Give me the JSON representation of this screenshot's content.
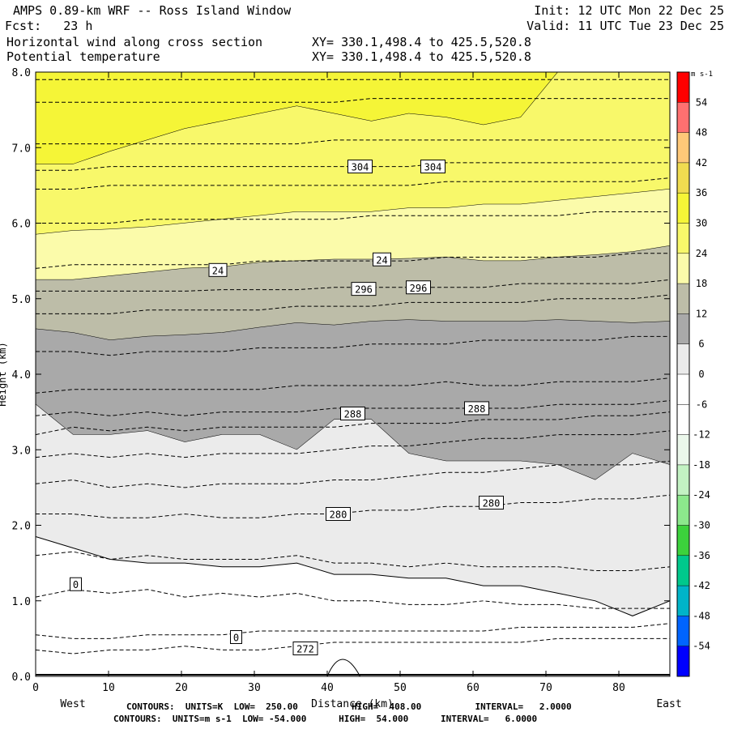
{
  "header": {
    "title": "AMPS 0.89-km WRF -- Ross Island Window",
    "init": "Init: 12 UTC Mon 22 Dec 25",
    "fcst": "Fcst:   23 h",
    "valid": "Valid: 11 UTC Tue 23 Dec 25",
    "field1": "Horizontal wind along cross section",
    "field1_xy": "XY= 330.1,498.4 to 425.5,520.8",
    "field2": "Potential temperature",
    "field2_xy": "XY= 330.1,498.4 to 425.5,520.8"
  },
  "footer": {
    "line1": "CONTOURS:  UNITS=K  LOW=  250.00          HIGH=  408.00          INTERVAL=   2.0000",
    "line2": "CONTOURS:  UNITS=m s-1  LOW= -54.000      HIGH=  54.000      INTERVAL=   6.0000"
  },
  "chart_data": {
    "type": "heatmap",
    "title": "AMPS 0.89-km WRF -- Ross Island Window",
    "xlabel": "Distance (km)",
    "ylabel": "Height (km)",
    "x_end_labels": [
      "West",
      "East"
    ],
    "xlim": [
      0,
      87
    ],
    "ylim": [
      0,
      8
    ],
    "xticks": [
      0,
      10,
      20,
      30,
      40,
      50,
      60,
      70,
      80
    ],
    "xtick_labels": [
      "0",
      "10",
      "20",
      "30",
      "40",
      "50",
      "60",
      "70",
      "80"
    ],
    "yticks": [
      0,
      1,
      2,
      3,
      4,
      5,
      6,
      7,
      8
    ],
    "ytick_labels": [
      "0.0",
      "1.0",
      "2.0",
      "3.0",
      "4.0",
      "5.0",
      "6.0",
      "7.0",
      "8.0"
    ],
    "colorbar": {
      "units": "m s-1",
      "labels": [
        "54",
        "48",
        "42",
        "36",
        "30",
        "24",
        "18",
        "12",
        "6",
        "0",
        "-6",
        "-12",
        "-18",
        "-24",
        "-30",
        "-36",
        "-42",
        "-48",
        "-54"
      ],
      "colors": [
        "#ff0000",
        "#ff7070",
        "#ffc878",
        "#f0dc50",
        "#f5f537",
        "#f8f86a",
        "#fbfbaa",
        "#bdbda8",
        "#a9a9a9",
        "#ebebeb",
        "#ffffff",
        "#ffffff",
        "#ebf7eb",
        "#c3f2c3",
        "#8ce88c",
        "#3cd23c",
        "#00c88c",
        "#00b4c8",
        "#0064ff",
        "#0000ff"
      ]
    },
    "wind_bands": [
      {
        "range": "30 to 36",
        "color": "#f5f537",
        "top": [
          8.0,
          8.0,
          8.0,
          8.0,
          8.0,
          8.0,
          8.0,
          8.0,
          8.0,
          8.0,
          8.0,
          8.0,
          8.0,
          8.0,
          8.0,
          8.0,
          8.0,
          8.0
        ],
        "bottom": [
          6.78,
          6.78,
          6.95,
          7.1,
          7.25,
          7.35,
          7.45,
          7.55,
          7.45,
          7.35,
          7.45,
          7.4,
          7.3,
          7.4,
          8.0,
          8.0,
          8.0,
          8.0
        ]
      },
      {
        "range": "24 to 30",
        "color": "#f8f86a",
        "top": [
          6.78,
          6.78,
          6.95,
          7.1,
          7.25,
          7.35,
          7.45,
          7.55,
          7.45,
          7.35,
          7.45,
          7.4,
          7.3,
          7.4,
          8.0,
          8.0,
          8.0,
          8.0
        ],
        "bottom": [
          5.85,
          5.9,
          5.92,
          5.95,
          6.0,
          6.05,
          6.1,
          6.15,
          6.15,
          6.15,
          6.2,
          6.2,
          6.25,
          6.25,
          6.3,
          6.35,
          6.4,
          6.45
        ]
      },
      {
        "range": "18 to 24",
        "color": "#fbfbaa",
        "top": [
          5.85,
          5.9,
          5.92,
          5.95,
          6.0,
          6.05,
          6.1,
          6.15,
          6.15,
          6.15,
          6.2,
          6.2,
          6.25,
          6.25,
          6.3,
          6.35,
          6.4,
          6.45
        ],
        "bottom": [
          5.25,
          5.25,
          5.3,
          5.35,
          5.4,
          5.42,
          5.48,
          5.5,
          5.52,
          5.52,
          5.53,
          5.55,
          5.5,
          5.5,
          5.55,
          5.58,
          5.62,
          5.7
        ]
      },
      {
        "range": "12 to 18",
        "color": "#bdbda8",
        "top": [
          5.25,
          5.25,
          5.3,
          5.35,
          5.4,
          5.42,
          5.48,
          5.5,
          5.52,
          5.52,
          5.53,
          5.55,
          5.5,
          5.5,
          5.55,
          5.58,
          5.62,
          5.7
        ],
        "bottom": [
          4.6,
          4.55,
          4.45,
          4.5,
          4.52,
          4.55,
          4.62,
          4.68,
          4.65,
          4.7,
          4.72,
          4.7,
          4.7,
          4.7,
          4.72,
          4.7,
          4.68,
          4.7
        ]
      },
      {
        "range": "6 to 12",
        "color": "#a9a9a9",
        "top": [
          4.6,
          4.55,
          4.45,
          4.5,
          4.52,
          4.55,
          4.62,
          4.68,
          4.65,
          4.7,
          4.72,
          4.7,
          4.7,
          4.7,
          4.72,
          4.7,
          4.68,
          4.7
        ],
        "bottom": [
          3.6,
          3.2,
          3.2,
          3.25,
          3.1,
          3.2,
          3.2,
          3.0,
          3.4,
          3.4,
          2.95,
          2.85,
          2.85,
          2.85,
          2.8,
          2.6,
          2.95,
          2.8
        ]
      },
      {
        "range": "0 to 6",
        "color": "#ebebeb",
        "top": [
          3.6,
          3.2,
          3.2,
          3.25,
          3.1,
          3.2,
          3.2,
          3.0,
          3.4,
          3.4,
          2.95,
          2.85,
          2.85,
          2.85,
          2.8,
          2.6,
          2.95,
          2.8
        ],
        "bottom": [
          1.85,
          1.7,
          1.55,
          1.5,
          1.5,
          1.45,
          1.45,
          1.5,
          1.35,
          1.35,
          1.3,
          1.3,
          1.2,
          1.2,
          1.1,
          1.0,
          0.8,
          1.0
        ]
      }
    ],
    "theta_contours": [
      {
        "theta": 272,
        "z": [
          0.35,
          0.3,
          0.35,
          0.35,
          0.4,
          0.35,
          0.35,
          0.4,
          0.45,
          0.45,
          0.45,
          0.45,
          0.45,
          0.45,
          0.5,
          0.5,
          0.5,
          0.5
        ]
      },
      {
        "theta": 274,
        "z": [
          0.55,
          0.5,
          0.5,
          0.55,
          0.55,
          0.55,
          0.6,
          0.6,
          0.6,
          0.6,
          0.6,
          0.6,
          0.6,
          0.65,
          0.65,
          0.65,
          0.65,
          0.7
        ]
      },
      {
        "theta": 276,
        "z": [
          1.05,
          1.15,
          1.1,
          1.15,
          1.05,
          1.1,
          1.05,
          1.1,
          1.0,
          1.0,
          0.95,
          0.95,
          1.0,
          0.95,
          0.95,
          0.9,
          0.9,
          0.9
        ]
      },
      {
        "theta": 278,
        "z": [
          1.6,
          1.65,
          1.55,
          1.6,
          1.55,
          1.55,
          1.55,
          1.6,
          1.5,
          1.5,
          1.45,
          1.5,
          1.45,
          1.45,
          1.45,
          1.4,
          1.4,
          1.45
        ]
      },
      {
        "theta": 280,
        "z": [
          2.15,
          2.15,
          2.1,
          2.1,
          2.15,
          2.1,
          2.1,
          2.15,
          2.15,
          2.2,
          2.2,
          2.25,
          2.25,
          2.3,
          2.3,
          2.35,
          2.35,
          2.4
        ]
      },
      {
        "theta": 282,
        "z": [
          2.55,
          2.6,
          2.5,
          2.55,
          2.5,
          2.55,
          2.55,
          2.55,
          2.6,
          2.6,
          2.65,
          2.7,
          2.7,
          2.75,
          2.8,
          2.8,
          2.8,
          2.85
        ]
      },
      {
        "theta": 284,
        "z": [
          2.9,
          2.95,
          2.9,
          2.95,
          2.9,
          2.95,
          2.95,
          2.95,
          3.0,
          3.05,
          3.05,
          3.1,
          3.15,
          3.15,
          3.2,
          3.2,
          3.2,
          3.25
        ]
      },
      {
        "theta": 286,
        "z": [
          3.2,
          3.3,
          3.25,
          3.3,
          3.25,
          3.3,
          3.3,
          3.3,
          3.3,
          3.35,
          3.35,
          3.35,
          3.4,
          3.4,
          3.4,
          3.45,
          3.45,
          3.5
        ]
      },
      {
        "theta": 288,
        "z": [
          3.45,
          3.5,
          3.45,
          3.5,
          3.45,
          3.5,
          3.5,
          3.5,
          3.55,
          3.55,
          3.55,
          3.55,
          3.55,
          3.55,
          3.6,
          3.6,
          3.6,
          3.65
        ]
      },
      {
        "theta": 290,
        "z": [
          3.75,
          3.8,
          3.8,
          3.8,
          3.8,
          3.8,
          3.8,
          3.85,
          3.85,
          3.85,
          3.85,
          3.9,
          3.85,
          3.85,
          3.9,
          3.9,
          3.9,
          3.95
        ]
      },
      {
        "theta": 292,
        "z": [
          4.3,
          4.3,
          4.25,
          4.3,
          4.3,
          4.3,
          4.35,
          4.35,
          4.35,
          4.4,
          4.4,
          4.4,
          4.45,
          4.45,
          4.45,
          4.45,
          4.5,
          4.5
        ]
      },
      {
        "theta": 294,
        "z": [
          4.8,
          4.8,
          4.8,
          4.85,
          4.85,
          4.85,
          4.85,
          4.9,
          4.9,
          4.9,
          4.95,
          4.95,
          4.95,
          4.95,
          5.0,
          5.0,
          5.0,
          5.05
        ]
      },
      {
        "theta": 296,
        "z": [
          5.1,
          5.1,
          5.1,
          5.1,
          5.1,
          5.12,
          5.12,
          5.12,
          5.15,
          5.15,
          5.15,
          5.15,
          5.15,
          5.2,
          5.2,
          5.2,
          5.2,
          5.25
        ]
      },
      {
        "theta": 298,
        "z": [
          5.4,
          5.45,
          5.45,
          5.45,
          5.45,
          5.45,
          5.5,
          5.5,
          5.5,
          5.5,
          5.5,
          5.55,
          5.55,
          5.55,
          5.55,
          5.55,
          5.6,
          5.6
        ]
      },
      {
        "theta": 300,
        "z": [
          6.0,
          6.0,
          6.0,
          6.05,
          6.05,
          6.05,
          6.05,
          6.05,
          6.05,
          6.1,
          6.1,
          6.1,
          6.1,
          6.1,
          6.1,
          6.15,
          6.15,
          6.15
        ]
      },
      {
        "theta": 302,
        "z": [
          6.45,
          6.45,
          6.5,
          6.5,
          6.5,
          6.5,
          6.5,
          6.5,
          6.5,
          6.5,
          6.5,
          6.55,
          6.55,
          6.55,
          6.55,
          6.55,
          6.55,
          6.6
        ]
      },
      {
        "theta": 304,
        "z": [
          6.7,
          6.7,
          6.75,
          6.75,
          6.75,
          6.75,
          6.75,
          6.75,
          6.75,
          6.75,
          6.75,
          6.8,
          6.8,
          6.8,
          6.8,
          6.8,
          6.8,
          6.8
        ]
      },
      {
        "theta": 306,
        "z": [
          7.05,
          7.05,
          7.05,
          7.05,
          7.05,
          7.05,
          7.05,
          7.05,
          7.1,
          7.1,
          7.1,
          7.1,
          7.1,
          7.1,
          7.1,
          7.1,
          7.1,
          7.1
        ]
      },
      {
        "theta": 308,
        "z": [
          7.6,
          7.6,
          7.6,
          7.6,
          7.6,
          7.6,
          7.6,
          7.6,
          7.6,
          7.65,
          7.65,
          7.65,
          7.65,
          7.65,
          7.65,
          7.65,
          7.65,
          7.65
        ]
      },
      {
        "theta": 310,
        "z": [
          7.9,
          7.9,
          7.9,
          7.9,
          7.9,
          7.9,
          7.9,
          7.9,
          7.9,
          7.9,
          7.9,
          7.9,
          7.9,
          7.9,
          7.9,
          7.9,
          7.9,
          7.9
        ]
      }
    ],
    "contour_labels": [
      {
        "text": "304",
        "x": 44.5,
        "y": 6.75
      },
      {
        "text": "304",
        "x": 54.5,
        "y": 6.75
      },
      {
        "text": "24",
        "x": 25.0,
        "y": 5.38
      },
      {
        "text": "24",
        "x": 47.5,
        "y": 5.52
      },
      {
        "text": "296",
        "x": 45.0,
        "y": 5.13
      },
      {
        "text": "296",
        "x": 52.5,
        "y": 5.15
      },
      {
        "text": "288",
        "x": 43.5,
        "y": 3.48
      },
      {
        "text": "288",
        "x": 60.5,
        "y": 3.55
      },
      {
        "text": "280",
        "x": 41.5,
        "y": 2.15
      },
      {
        "text": "280",
        "x": 62.5,
        "y": 2.3
      },
      {
        "text": "0",
        "x": 5.5,
        "y": 1.22
      },
      {
        "text": "0",
        "x": 27.5,
        "y": 0.52
      },
      {
        "text": "272",
        "x": 37.0,
        "y": 0.37
      }
    ]
  }
}
